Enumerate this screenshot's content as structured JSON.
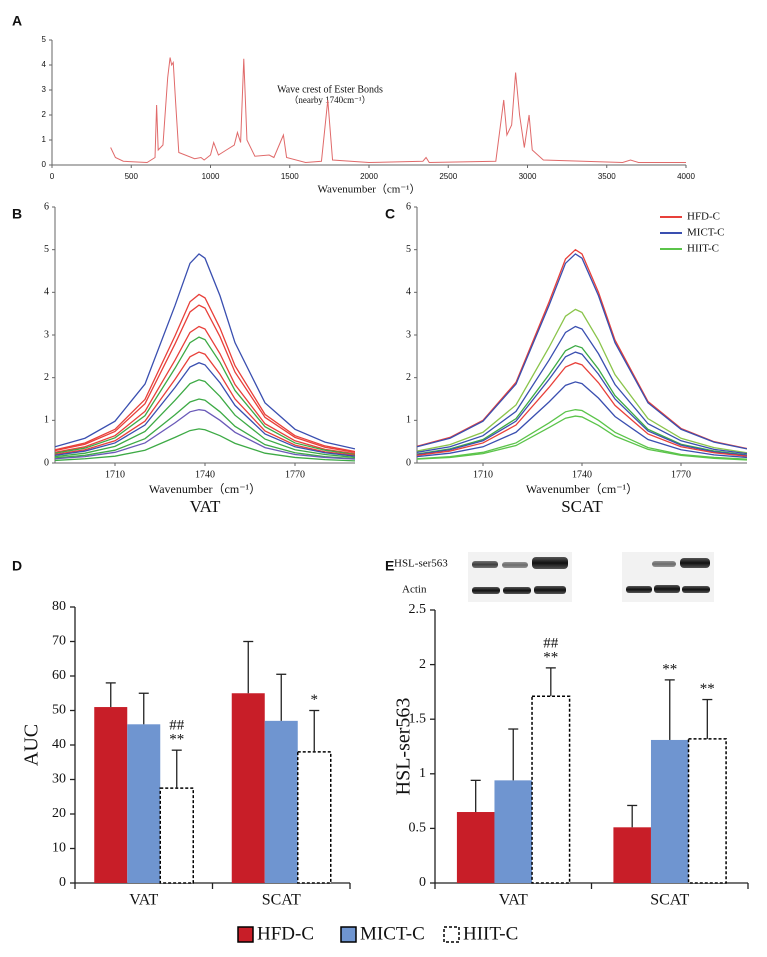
{
  "chart_data": [
    {
      "type": "line",
      "panel_label": "A",
      "x_label": "Wavenumber（cm⁻¹）",
      "annotation": [
        "Wave crest of Ester Bonds",
        "（nearby 1740cm⁻¹）"
      ],
      "xlim": [
        0,
        4000
      ],
      "xticks": [
        0,
        500,
        1000,
        1500,
        2000,
        2500,
        3000,
        3500,
        4000
      ],
      "ylim": [
        0,
        5
      ],
      "yticks": [
        0,
        1,
        2,
        3,
        4,
        5
      ],
      "x": [
        370,
        400,
        450,
        600,
        650,
        660,
        670,
        700,
        730,
        745,
        755,
        765,
        780,
        800,
        900,
        940,
        960,
        1000,
        1020,
        1050,
        1100,
        1150,
        1170,
        1190,
        1210,
        1230,
        1280,
        1370,
        1400,
        1440,
        1460,
        1480,
        1600,
        1700,
        1740,
        1770,
        2000,
        2340,
        2360,
        2380,
        2800,
        2850,
        2870,
        2900,
        2925,
        2950,
        2980,
        3010,
        3030,
        3100,
        3600,
        3650,
        3700,
        4000
      ],
      "series": [
        {
          "color": "#e06a6a",
          "values": [
            0.7,
            0.3,
            0.15,
            0.1,
            0.3,
            2.4,
            0.6,
            0.8,
            3.5,
            4.3,
            4.0,
            4.1,
            2.5,
            0.5,
            0.25,
            0.3,
            0.2,
            0.4,
            0.9,
            0.4,
            0.6,
            0.8,
            1.3,
            0.9,
            4.25,
            1.0,
            0.35,
            0.4,
            0.3,
            0.9,
            1.2,
            0.3,
            0.1,
            0.15,
            2.6,
            0.2,
            0.1,
            0.15,
            0.3,
            0.1,
            0.15,
            2.6,
            1.2,
            1.6,
            3.7,
            2.0,
            0.7,
            2.0,
            0.6,
            0.2,
            0.1,
            0.2,
            0.1,
            0.1
          ]
        }
      ]
    },
    {
      "type": "line",
      "panel_label": "B",
      "x_label": "Wavenumber（cm⁻¹）",
      "subtitle": "VAT",
      "xlim": [
        1690,
        1790
      ],
      "xticks": [
        1710,
        1740,
        1770
      ],
      "ylim": [
        0,
        6
      ],
      "yticks": [
        0,
        1,
        2,
        3,
        4,
        5,
        6
      ],
      "x": [
        1690,
        1700,
        1710,
        1720,
        1730,
        1735,
        1738,
        1740,
        1745,
        1750,
        1760,
        1770,
        1780,
        1790
      ],
      "series": [
        {
          "color": "#3a4fb0",
          "values": [
            0.38,
            0.58,
            0.98,
            1.85,
            3.69,
            4.68,
            4.9,
            4.8,
            3.92,
            2.82,
            1.41,
            0.79,
            0.49,
            0.33
          ]
        },
        {
          "color": "#e8403a",
          "values": [
            0.31,
            0.47,
            0.79,
            1.49,
            2.98,
            3.78,
            3.95,
            3.87,
            3.16,
            2.28,
            1.14,
            0.64,
            0.4,
            0.27
          ]
        },
        {
          "color": "#e8403a",
          "values": [
            0.29,
            0.44,
            0.74,
            1.39,
            2.79,
            3.54,
            3.7,
            3.63,
            2.96,
            2.13,
            1.07,
            0.6,
            0.37,
            0.25
          ]
        },
        {
          "color": "#e8403a",
          "values": [
            0.25,
            0.38,
            0.64,
            1.21,
            2.41,
            3.06,
            3.2,
            3.14,
            2.56,
            1.84,
            0.92,
            0.52,
            0.32,
            0.22
          ]
        },
        {
          "color": "#3daa45",
          "values": [
            0.23,
            0.35,
            0.59,
            1.11,
            2.22,
            2.82,
            2.95,
            2.89,
            2.36,
            1.7,
            0.85,
            0.47,
            0.3,
            0.2
          ]
        },
        {
          "color": "#e8403a",
          "values": [
            0.2,
            0.31,
            0.52,
            0.98,
            1.96,
            2.49,
            2.6,
            2.55,
            2.08,
            1.5,
            0.75,
            0.42,
            0.26,
            0.18
          ]
        },
        {
          "color": "#3a4fb0",
          "values": [
            0.18,
            0.28,
            0.47,
            0.89,
            1.77,
            2.25,
            2.35,
            2.3,
            1.88,
            1.35,
            0.68,
            0.38,
            0.24,
            0.16
          ]
        },
        {
          "color": "#3daa45",
          "values": [
            0.15,
            0.23,
            0.39,
            0.74,
            1.47,
            1.86,
            1.95,
            1.91,
            1.56,
            1.12,
            0.56,
            0.31,
            0.2,
            0.13
          ]
        },
        {
          "color": "#3daa45",
          "values": [
            0.12,
            0.18,
            0.3,
            0.57,
            1.13,
            1.43,
            1.5,
            1.47,
            1.2,
            0.86,
            0.43,
            0.24,
            0.15,
            0.1
          ]
        },
        {
          "color": "#6a5ab8",
          "values": [
            0.1,
            0.15,
            0.25,
            0.47,
            0.94,
            1.2,
            1.25,
            1.23,
            1.0,
            0.72,
            0.36,
            0.2,
            0.13,
            0.09
          ]
        },
        {
          "color": "#3daa45",
          "values": [
            0.06,
            0.1,
            0.16,
            0.3,
            0.6,
            0.76,
            0.8,
            0.78,
            0.64,
            0.46,
            0.23,
            0.13,
            0.08,
            0.05
          ]
        }
      ]
    },
    {
      "type": "line",
      "panel_label": "C",
      "x_label": "Wavenumber（cm⁻¹）",
      "subtitle": "SCAT",
      "xlim": [
        1690,
        1790
      ],
      "xticks": [
        1710,
        1740,
        1770
      ],
      "ylim": [
        0,
        6
      ],
      "yticks": [
        0,
        1,
        2,
        3,
        4,
        5,
        6
      ],
      "legend": [
        {
          "name": "HFD-C",
          "color": "#e8403a"
        },
        {
          "name": "MICT-C",
          "color": "#3a4fb0"
        },
        {
          "name": "HIIT-C",
          "color": "#5bc44a"
        }
      ],
      "x": [
        1690,
        1700,
        1710,
        1720,
        1730,
        1735,
        1738,
        1740,
        1745,
        1750,
        1760,
        1770,
        1780,
        1790
      ],
      "series": [
        {
          "color": "#e8403a",
          "values": [
            0.39,
            0.6,
            1.0,
            1.89,
            3.77,
            4.78,
            5.0,
            4.9,
            4.0,
            2.88,
            1.44,
            0.81,
            0.5,
            0.34
          ]
        },
        {
          "color": "#3a4fb0",
          "values": [
            0.38,
            0.58,
            0.98,
            1.85,
            3.69,
            4.68,
            4.9,
            4.8,
            3.92,
            2.82,
            1.41,
            0.79,
            0.49,
            0.33
          ]
        },
        {
          "color": "#8ac44a",
          "values": [
            0.28,
            0.43,
            0.72,
            1.36,
            2.71,
            3.44,
            3.6,
            3.53,
            2.88,
            2.07,
            1.04,
            0.58,
            0.36,
            0.24
          ]
        },
        {
          "color": "#3a4fb0",
          "values": [
            0.25,
            0.38,
            0.64,
            1.21,
            2.41,
            3.06,
            3.2,
            3.14,
            2.56,
            1.84,
            0.92,
            0.52,
            0.32,
            0.22
          ]
        },
        {
          "color": "#3daa45",
          "values": [
            0.21,
            0.33,
            0.55,
            1.04,
            2.07,
            2.63,
            2.75,
            2.7,
            2.2,
            1.58,
            0.79,
            0.44,
            0.28,
            0.19
          ]
        },
        {
          "color": "#3a4fb0",
          "values": [
            0.2,
            0.31,
            0.52,
            0.98,
            1.96,
            2.49,
            2.6,
            2.55,
            2.08,
            1.5,
            0.75,
            0.42,
            0.26,
            0.18
          ]
        },
        {
          "color": "#e8403a",
          "values": [
            0.18,
            0.28,
            0.47,
            0.89,
            1.77,
            2.25,
            2.35,
            2.3,
            1.88,
            1.35,
            0.68,
            0.38,
            0.24,
            0.16
          ]
        },
        {
          "color": "#3a4fb0",
          "values": [
            0.15,
            0.23,
            0.38,
            0.72,
            1.43,
            1.82,
            1.9,
            1.86,
            1.52,
            1.09,
            0.55,
            0.31,
            0.19,
            0.13
          ]
        },
        {
          "color": "#5bc44a",
          "values": [
            0.1,
            0.15,
            0.25,
            0.47,
            0.94,
            1.2,
            1.25,
            1.23,
            1.0,
            0.72,
            0.36,
            0.2,
            0.13,
            0.09
          ]
        },
        {
          "color": "#5bc44a",
          "values": [
            0.09,
            0.13,
            0.22,
            0.41,
            0.83,
            1.05,
            1.1,
            1.08,
            0.88,
            0.63,
            0.32,
            0.18,
            0.11,
            0.07
          ]
        }
      ]
    },
    {
      "type": "bar",
      "panel_label": "D",
      "y_label": "AUC",
      "categories": [
        "VAT",
        "SCAT"
      ],
      "ylim": [
        0,
        80
      ],
      "yticks": [
        0,
        10,
        20,
        30,
        40,
        50,
        60,
        70,
        80
      ],
      "series": [
        {
          "name": "HFD-C",
          "color": "#c81e28",
          "values": [
            51,
            55
          ],
          "errors": [
            7,
            15
          ]
        },
        {
          "name": "MICT-C",
          "color": "#6f95d0",
          "values": [
            46,
            47
          ],
          "errors": [
            9,
            13.5
          ]
        },
        {
          "name": "HIIT-C",
          "color": "#ffffff",
          "dashed": true,
          "values": [
            27.5,
            38
          ],
          "errors": [
            11,
            12
          ],
          "labels": [
            [
              "##",
              "**"
            ],
            [
              "*"
            ]
          ]
        }
      ]
    },
    {
      "type": "bar",
      "panel_label": "E",
      "y_label": "HSL-ser563",
      "categories": [
        "VAT",
        "SCAT"
      ],
      "blot_labels": [
        "HSL-ser563",
        "Actin"
      ],
      "ylim": [
        0,
        2.5
      ],
      "yticks": [
        0,
        0.5,
        1,
        1.5,
        2,
        2.5
      ],
      "series": [
        {
          "color": "#c81e28",
          "values": [
            0.65,
            0.51
          ],
          "errors": [
            0.29,
            0.2
          ]
        },
        {
          "color": "#6f95d0",
          "values": [
            0.94,
            1.31
          ],
          "errors": [
            0.47,
            0.55
          ],
          "labels": [
            null,
            [
              "**"
            ]
          ]
        },
        {
          "color": "#ffffff",
          "dashed": true,
          "values": [
            1.71,
            1.32
          ],
          "errors": [
            0.26,
            0.36
          ],
          "labels": [
            [
              "##",
              "**"
            ],
            [
              "**"
            ]
          ]
        }
      ]
    }
  ]
}
